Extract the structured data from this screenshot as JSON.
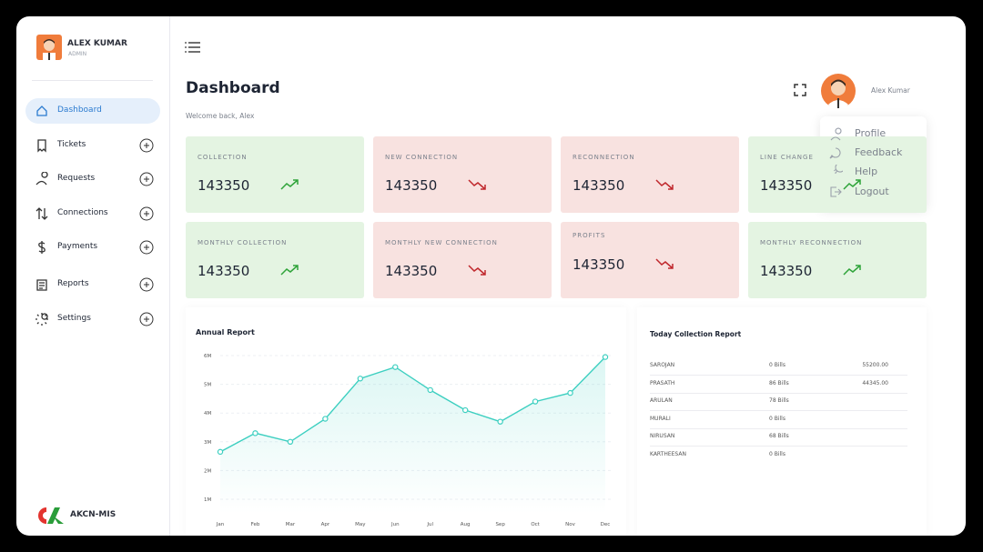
{
  "sidebar": {
    "user_name": "ALEX KUMAR",
    "user_role": "ADMIN",
    "nav": [
      "Dashboard",
      "Tickets",
      "Requests",
      "Connections",
      "Payments",
      "Reports",
      "Settings"
    ],
    "brand": "AKCN-MIS"
  },
  "header": {
    "title": "Dashboard",
    "subtitle": "Welcome back, Alex",
    "user_name": "Alex Kumar"
  },
  "profile_menu": [
    "Profile",
    "Feedback",
    "Help",
    "Logout"
  ],
  "cards": [
    {
      "label": "COLLECTION",
      "value": 143350,
      "trend": "up"
    },
    {
      "label": "NEW CONNECTION",
      "value": 143350,
      "trend": "down"
    },
    {
      "label": "RECONNECTION",
      "value": 143350,
      "trend": "down"
    },
    {
      "label": "LINE CHANGE",
      "value": 143350,
      "trend": "up"
    },
    {
      "label": "MONTHLY COLLECTION",
      "value": 143350,
      "trend": "up"
    },
    {
      "label": "MONTHLY NEW CONNECTION",
      "value": 143350,
      "trend": "down"
    },
    {
      "label": "PROFITS",
      "value": 143350,
      "trend": "down"
    },
    {
      "label": "MONTHLY RECONNECTION",
      "value": 143350,
      "trend": "up"
    }
  ],
  "chart_data": {
    "type": "line",
    "title": "Annual Report",
    "categories": [
      "Jan",
      "Feb",
      "Mar",
      "Apr",
      "May",
      "Jun",
      "Jul",
      "Aug",
      "Sep",
      "Oct",
      "Nov",
      "Dec"
    ],
    "values": [
      2650000,
      3300000,
      3000000,
      3800000,
      5200000,
      5600000,
      4800000,
      4100000,
      3700000,
      4400000,
      4700000,
      5950000
    ],
    "color": "#3ccfc0",
    "ylim": [
      500000,
      6500000
    ],
    "yticks": [
      {
        "value": 1000000,
        "label": "1M"
      },
      {
        "value": 2000000,
        "label": "2M"
      },
      {
        "value": 3000000,
        "label": "3M"
      },
      {
        "value": 4000000,
        "label": "4M"
      },
      {
        "value": 5000000,
        "label": "5M"
      },
      {
        "value": 6000000,
        "label": "6M"
      }
    ],
    "grid": true
  },
  "table": {
    "title": "Today Collection Report",
    "rows": [
      [
        "SAROJAN",
        "0 Bills",
        "55200.00"
      ],
      [
        "PRASATH",
        "86 Bills",
        "44345.00"
      ],
      [
        "ARULAN",
        "78 Bills",
        ""
      ],
      [
        "MURALI",
        "0 Bills",
        ""
      ],
      [
        "NIRUSAN",
        "68 Bills",
        ""
      ],
      [
        "KARTHEESAN",
        "0 Bills",
        ""
      ]
    ]
  }
}
